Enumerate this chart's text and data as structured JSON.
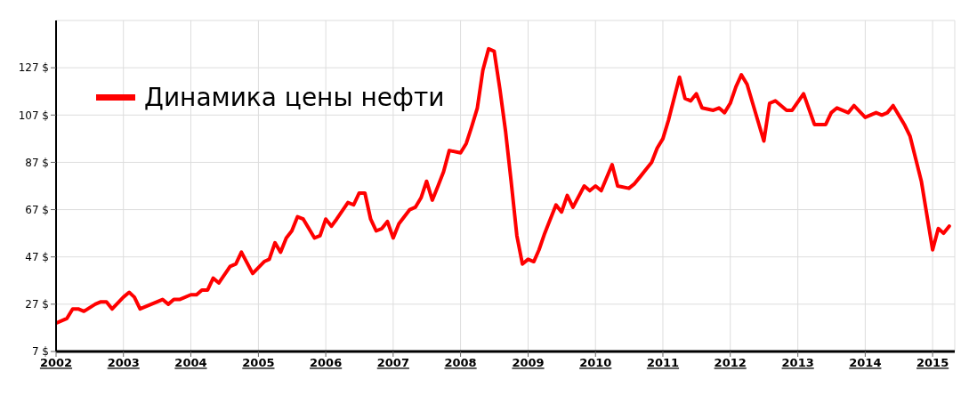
{
  "chart_data": {
    "type": "line",
    "x": [
      "2002-01",
      "2002-03",
      "2002-04",
      "2002-05",
      "2002-06",
      "2002-08",
      "2002-09",
      "2002-10",
      "2002-11",
      "2003-01",
      "2003-02",
      "2003-03",
      "2003-04",
      "2003-06",
      "2003-08",
      "2003-09",
      "2003-10",
      "2003-11",
      "2004-01",
      "2004-02",
      "2004-03",
      "2004-04",
      "2004-05",
      "2004-06",
      "2004-08",
      "2004-09",
      "2004-10",
      "2004-12",
      "2005-02",
      "2005-03",
      "2005-04",
      "2005-05",
      "2005-06",
      "2005-07",
      "2005-08",
      "2005-09",
      "2005-11",
      "2005-12",
      "2006-01",
      "2006-02",
      "2006-03",
      "2006-05",
      "2006-06",
      "2006-07",
      "2006-08",
      "2006-09",
      "2006-10",
      "2006-11",
      "2006-12",
      "2007-01",
      "2007-02",
      "2007-04",
      "2007-05",
      "2007-06",
      "2007-07",
      "2007-08",
      "2007-09",
      "2007-10",
      "2007-11",
      "2008-01",
      "2008-02",
      "2008-03",
      "2008-04",
      "2008-05",
      "2008-06",
      "2008-07",
      "2008-08",
      "2008-09",
      "2008-10",
      "2008-11",
      "2008-12",
      "2009-01",
      "2009-02",
      "2009-03",
      "2009-04",
      "2009-06",
      "2009-07",
      "2009-08",
      "2009-09",
      "2009-11",
      "2009-12",
      "2010-01",
      "2010-02",
      "2010-04",
      "2010-05",
      "2010-07",
      "2010-08",
      "2010-09",
      "2010-10",
      "2010-11",
      "2010-12",
      "2011-01",
      "2011-02",
      "2011-04",
      "2011-05",
      "2011-06",
      "2011-07",
      "2011-08",
      "2011-10",
      "2011-11",
      "2011-12",
      "2012-01",
      "2012-02",
      "2012-03",
      "2012-04",
      "2012-07",
      "2012-08",
      "2012-09",
      "2012-11",
      "2012-12",
      "2013-02",
      "2013-04",
      "2013-06",
      "2013-07",
      "2013-08",
      "2013-10",
      "2013-11",
      "2014-01",
      "2014-03",
      "2014-04",
      "2014-05",
      "2014-06",
      "2014-08",
      "2014-09",
      "2014-11",
      "2015-01",
      "2015-02",
      "2015-03",
      "2015-04"
    ],
    "series": [
      {
        "name": "Динамика цены нефти",
        "color": "#ff0000",
        "values": [
          19,
          21,
          25,
          25,
          24,
          27,
          28,
          28,
          25,
          30,
          32,
          30,
          25,
          27,
          29,
          27,
          29,
          29,
          31,
          31,
          33,
          33,
          38,
          36,
          43,
          44,
          49,
          40,
          45,
          46,
          53,
          49,
          55,
          58,
          64,
          63,
          55,
          56,
          63,
          60,
          63,
          70,
          69,
          74,
          74,
          63,
          58,
          59,
          62,
          55,
          61,
          67,
          68,
          72,
          79,
          71,
          77,
          83,
          92,
          91,
          95,
          102,
          110,
          126,
          135,
          134,
          118,
          100,
          79,
          56,
          44,
          46,
          45,
          50,
          57,
          69,
          66,
          73,
          68,
          77,
          75,
          77,
          75,
          86,
          77,
          76,
          78,
          81,
          84,
          87,
          93,
          97,
          105,
          123,
          114,
          113,
          116,
          110,
          109,
          110,
          108,
          112,
          119,
          124,
          120,
          96,
          112,
          113,
          109,
          109,
          116,
          103,
          103,
          108,
          110,
          108,
          111,
          106,
          108,
          107,
          108,
          111,
          103,
          98,
          79,
          50,
          59,
          57,
          60
        ]
      }
    ],
    "xlim": [
      "2002-01",
      "2015-05"
    ],
    "xticks": [
      {
        "value": "2002-01",
        "label": "2002"
      },
      {
        "value": "2003-01",
        "label": "2003"
      },
      {
        "value": "2004-01",
        "label": "2004"
      },
      {
        "value": "2005-01",
        "label": "2005"
      },
      {
        "value": "2006-01",
        "label": "2006"
      },
      {
        "value": "2007-01",
        "label": "2007"
      },
      {
        "value": "2008-01",
        "label": "2008"
      },
      {
        "value": "2009-01",
        "label": "2009"
      },
      {
        "value": "2010-01",
        "label": "2010"
      },
      {
        "value": "2011-01",
        "label": "2011"
      },
      {
        "value": "2012-01",
        "label": "2012"
      },
      {
        "value": "2013-01",
        "label": "2013"
      },
      {
        "value": "2014-01",
        "label": "2014"
      },
      {
        "value": "2015-01",
        "label": "2015"
      }
    ],
    "ylim": [
      7,
      147
    ],
    "yticks": [
      {
        "value": 7,
        "label": "7 $"
      },
      {
        "value": 27,
        "label": "27 $"
      },
      {
        "value": 47,
        "label": "47 $"
      },
      {
        "value": 67,
        "label": "67 $"
      },
      {
        "value": 87,
        "label": "87 $"
      },
      {
        "value": 107,
        "label": "107 $"
      },
      {
        "value": 127,
        "label": "127 $"
      }
    ],
    "grid": true,
    "legend": "top left"
  }
}
